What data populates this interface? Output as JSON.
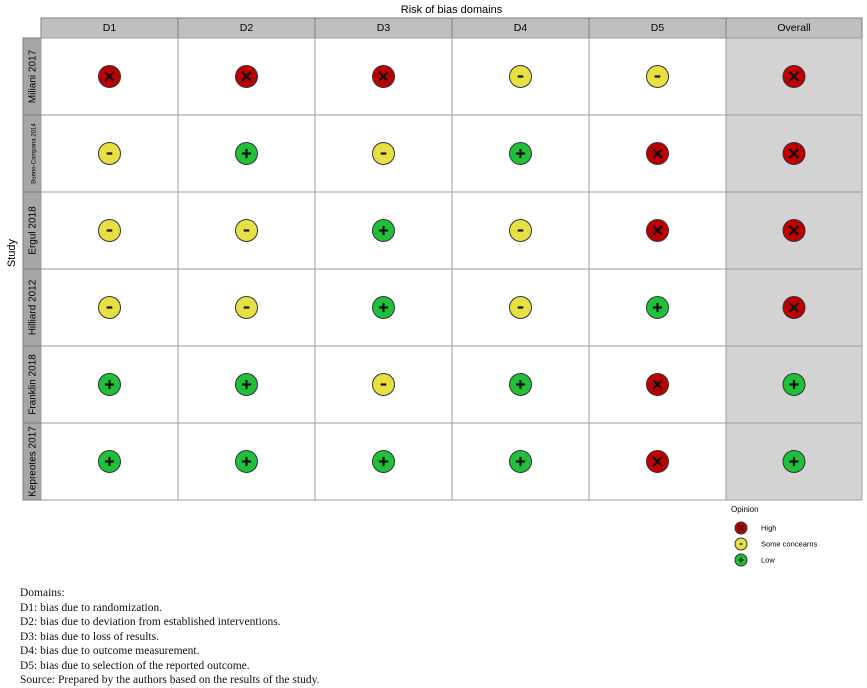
{
  "chart_data": {
    "type": "table",
    "title": "Risk of bias domains",
    "ylabel": "Study",
    "columns": [
      "D1",
      "D2",
      "D3",
      "D4",
      "D5",
      "Overall"
    ],
    "rows": [
      {
        "study": "Miliani 2017",
        "values": [
          "high",
          "high",
          "high",
          "some",
          "some",
          "high"
        ]
      },
      {
        "study": "Bueno-Campana 2014",
        "values": [
          "some",
          "low",
          "some",
          "low",
          "high",
          "high"
        ]
      },
      {
        "study": "Ergul 2018",
        "values": [
          "some",
          "some",
          "low",
          "some",
          "high",
          "high"
        ]
      },
      {
        "study": "Hilliard 2012",
        "values": [
          "some",
          "some",
          "low",
          "some",
          "low",
          "high"
        ]
      },
      {
        "study": "Franklin 2018",
        "values": [
          "low",
          "low",
          "some",
          "low",
          "high",
          "low"
        ]
      },
      {
        "study": "Kepreotes 2017",
        "values": [
          "low",
          "low",
          "low",
          "low",
          "high",
          "low"
        ]
      }
    ],
    "legend": {
      "title": "Opinion",
      "items": [
        {
          "key": "high",
          "label": "High",
          "color": "#c00000",
          "symbol": "X"
        },
        {
          "key": "some",
          "label": "Some concearns",
          "color": "#e6e043",
          "symbol": "-"
        },
        {
          "key": "low",
          "label": "Low",
          "color": "#1fc13a",
          "symbol": "+"
        }
      ]
    },
    "colors": {
      "header": "#bfbfbf",
      "overall_column": "#d3d3d3",
      "grid": "#9e9e9e"
    }
  },
  "notes": {
    "heading": "Domains:",
    "d1": "D1: bias due to randomization.",
    "d2": "D2: bias due to deviation from established interventions.",
    "d3": "D3: bias due to loss of results.",
    "d4": "D4: bias due to outcome measurement.",
    "d5": "D5: bias due to selection of the reported outcome.",
    "source": "Source: Prepared by the authors based on the results of the study."
  }
}
